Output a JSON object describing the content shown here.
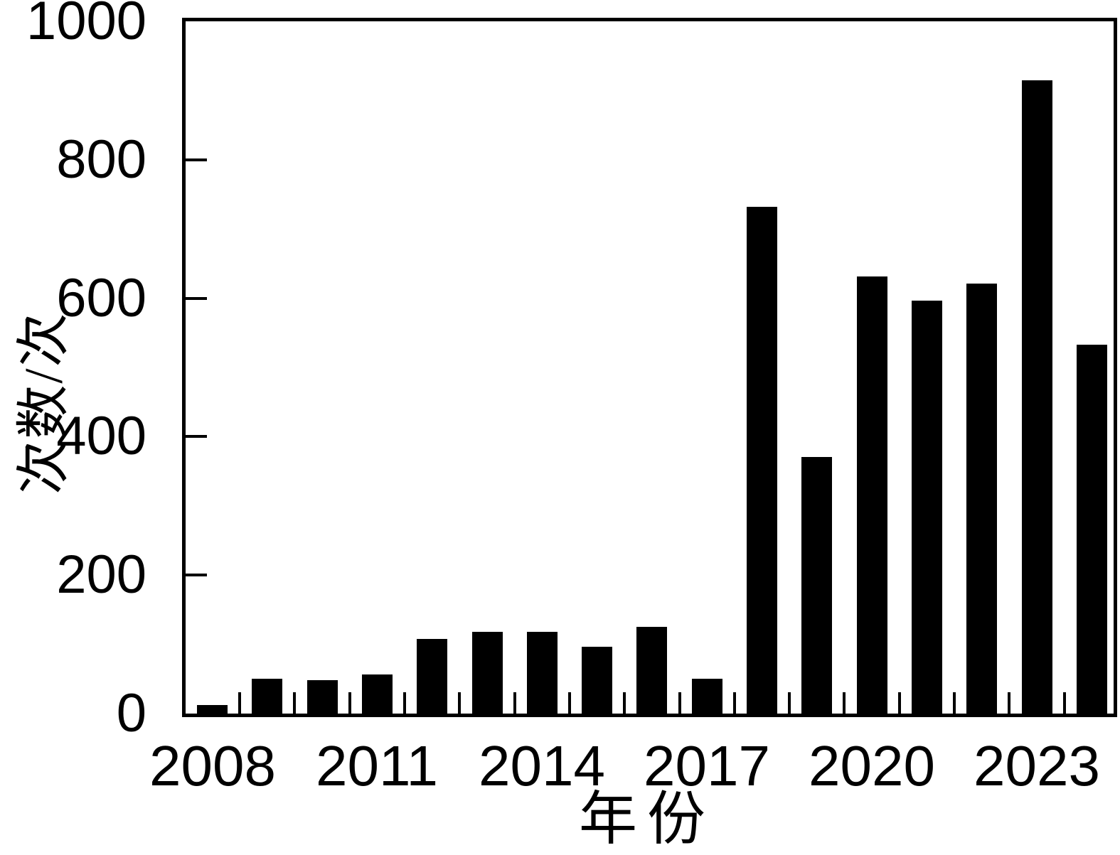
{
  "figure": {
    "background_color": "#ffffff",
    "bar_color": "#000000",
    "axis_color": "#000000",
    "text_color": "#000000"
  },
  "chart_data": {
    "type": "bar",
    "title": "",
    "xlabel": "年份",
    "ylabel": "次数/次",
    "categories": [
      "2008",
      "2009",
      "2010",
      "2011",
      "2012",
      "2013",
      "2014",
      "2015",
      "2016",
      "2017",
      "2018",
      "2019",
      "2020",
      "2021",
      "2022",
      "2023",
      "2024"
    ],
    "values": [
      12,
      50,
      48,
      56,
      108,
      118,
      118,
      97,
      125,
      50,
      732,
      371,
      631,
      596,
      621,
      915,
      533
    ],
    "ylim": [
      0,
      1000
    ],
    "yticks": [
      0,
      200,
      400,
      600,
      800,
      1000
    ],
    "ytick_labels": [
      "0",
      "200",
      "400",
      "600",
      "800",
      "1000"
    ],
    "xtick_labels": [
      "2008",
      "2011",
      "2014",
      "2017",
      "2020",
      "2023"
    ],
    "xtick_label_every": 3,
    "grid": false,
    "legend": null,
    "tick_direction": "in",
    "plot_frame": "full-box",
    "bar_color": "#000000"
  }
}
